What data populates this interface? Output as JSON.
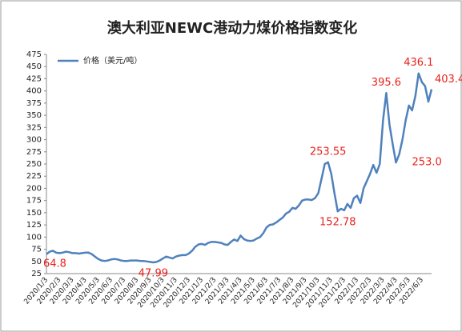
{
  "chart_data": {
    "type": "line",
    "title": "澳大利亚NEWC港动力煤价格指数变化",
    "categories": [
      "2020/1/3",
      null,
      null,
      null,
      "2020/2/3",
      null,
      null,
      null,
      "2020/3/3",
      null,
      null,
      null,
      "2020/4/3",
      null,
      null,
      null,
      "2020/5/3",
      null,
      null,
      null,
      "2020/6/3",
      null,
      null,
      null,
      "2020/7/3",
      null,
      null,
      null,
      "2020/8/3",
      null,
      null,
      null,
      "2020/9/3",
      null,
      null,
      null,
      "2020/10/3",
      null,
      null,
      null,
      "2020/11/3",
      null,
      null,
      null,
      "2020/12/3",
      null,
      null,
      null,
      "2021/1/3",
      null,
      null,
      null,
      "2021/2/3",
      null,
      null,
      null,
      "2021/3/3",
      null,
      null,
      null,
      "2021/4/3",
      null,
      null,
      null,
      "2021/5/3",
      null,
      null,
      null,
      "2021/6/3",
      null,
      null,
      null,
      "2021/7/3",
      null,
      null,
      null,
      "2021/8/3",
      null,
      null,
      null,
      "2021/9/3",
      null,
      null,
      null,
      "2021/10/3",
      null,
      null,
      null,
      "2021/11/3",
      null,
      null,
      null,
      "2021/12/3",
      null,
      null,
      null,
      "2022/1/3",
      null,
      null,
      null,
      "2022/2/3",
      null,
      null,
      null,
      "2022/3/3",
      null,
      null,
      null,
      "2022/4/3",
      null,
      null,
      null,
      "2022/5/3",
      null,
      null,
      null,
      "2022/6/3",
      null,
      null,
      null
    ],
    "series": [
      {
        "name": "价格（美元/吨）",
        "color": "#4f81bd",
        "values": [
          64.8,
          70,
          72,
          68,
          67,
          68,
          70,
          69,
          67,
          67,
          66,
          67,
          68,
          68,
          65,
          60,
          55,
          52,
          51,
          52,
          54,
          55,
          54,
          52,
          51,
          51,
          52,
          52,
          52,
          51,
          51,
          50,
          49,
          47.99,
          49,
          52,
          56,
          60,
          58,
          56,
          60,
          62,
          63,
          63,
          66,
          72,
          80,
          85,
          86,
          84,
          88,
          90,
          90,
          89,
          88,
          85,
          84,
          90,
          95,
          92,
          103,
          96,
          93,
          92,
          93,
          97,
          100,
          108,
          120,
          125,
          126,
          130,
          135,
          140,
          148,
          152,
          160,
          158,
          165,
          175,
          177,
          177,
          176,
          180,
          190,
          220,
          250,
          253.55,
          230,
          190,
          152.78,
          158,
          155,
          168,
          160,
          180,
          185,
          170,
          200,
          215,
          230,
          248,
          232,
          250,
          340,
          395.6,
          330,
          290,
          253,
          270,
          300,
          340,
          370,
          360,
          390,
          436.1,
          418,
          410,
          378,
          403.4
        ],
        "value_labels": [
          "64.8",
          null,
          null,
          null,
          null,
          null,
          null,
          null,
          null,
          null,
          null,
          null,
          null,
          null,
          null,
          null,
          null,
          null,
          null,
          null,
          null,
          null,
          null,
          null,
          null,
          null,
          null,
          null,
          null,
          null,
          null,
          null,
          null,
          "47.99",
          null,
          null,
          null,
          null,
          null,
          null,
          null,
          null,
          null,
          null,
          null,
          null,
          null,
          null,
          null,
          null,
          null,
          null,
          null,
          null,
          null,
          null,
          null,
          null,
          null,
          null,
          null,
          null,
          null,
          null,
          null,
          null,
          null,
          null,
          null,
          null,
          null,
          null,
          null,
          null,
          null,
          null,
          null,
          null,
          null,
          null,
          null,
          null,
          null,
          null,
          null,
          null,
          null,
          "253.55",
          null,
          null,
          "152.78",
          null,
          null,
          null,
          null,
          null,
          null,
          null,
          null,
          null,
          null,
          null,
          null,
          null,
          null,
          "395.6",
          null,
          null,
          "253.0",
          null,
          null,
          null,
          null,
          null,
          null,
          "436.1",
          null,
          null,
          null,
          "403.4"
        ]
      }
    ],
    "label_color": "#e8211b",
    "ylim": [
      25,
      475
    ],
    "yticks": [
      25,
      50,
      75,
      100,
      125,
      150,
      175,
      200,
      225,
      250,
      275,
      300,
      325,
      350,
      375,
      400,
      425,
      450,
      475
    ],
    "grid": false,
    "legend": "top-left"
  }
}
